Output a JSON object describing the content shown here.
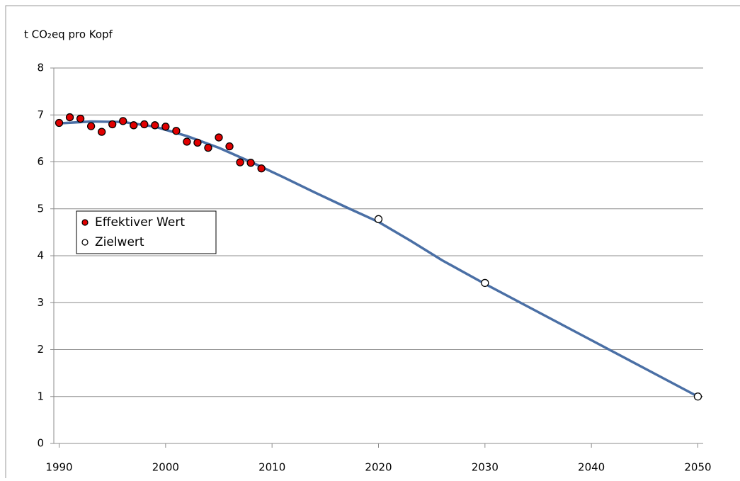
{
  "chart_data": {
    "type": "scatter",
    "y_label": "t CO₂eq pro Kopf",
    "xlim": [
      1989.5,
      2050.5
    ],
    "xticks": [
      1990,
      2000,
      2010,
      2020,
      2030,
      2040,
      2050
    ],
    "ylim": [
      0,
      8
    ],
    "yticks": [
      0,
      1,
      2,
      3,
      4,
      5,
      6,
      7,
      8
    ],
    "grid": true,
    "legend": "left",
    "series": [
      {
        "name": "Effektiver Wert",
        "color": "#e00000",
        "marker": "filled",
        "x": [
          1990,
          1991,
          1992,
          1993,
          1994,
          1995,
          1996,
          1997,
          1998,
          1999,
          2000,
          2001,
          2002,
          2003,
          2004,
          2005,
          2006,
          2007,
          2008,
          2009
        ],
        "values": [
          6.83,
          6.95,
          6.92,
          6.76,
          6.64,
          6.8,
          6.87,
          6.78,
          6.8,
          6.78,
          6.75,
          6.66,
          6.43,
          6.41,
          6.3,
          6.52,
          6.33,
          5.99,
          5.98,
          5.86
        ]
      },
      {
        "name": "Zielwert",
        "color": "#ffffff",
        "marker": "hollow",
        "x": [
          2020,
          2030,
          2050
        ],
        "values": [
          4.78,
          3.42,
          1.0
        ]
      },
      {
        "color": "#4a6fa5",
        "marker": "line",
        "x": [
          1990,
          1993,
          1996,
          1999,
          2002,
          2005,
          2008,
          2011,
          2014,
          2017,
          2020,
          2023,
          2026,
          2030,
          2035,
          2040,
          2045,
          2050
        ],
        "values": [
          6.82,
          6.86,
          6.85,
          6.75,
          6.55,
          6.3,
          6.0,
          5.68,
          5.35,
          5.03,
          4.72,
          4.32,
          3.9,
          3.4,
          2.8,
          2.2,
          1.6,
          1.0
        ]
      }
    ]
  }
}
